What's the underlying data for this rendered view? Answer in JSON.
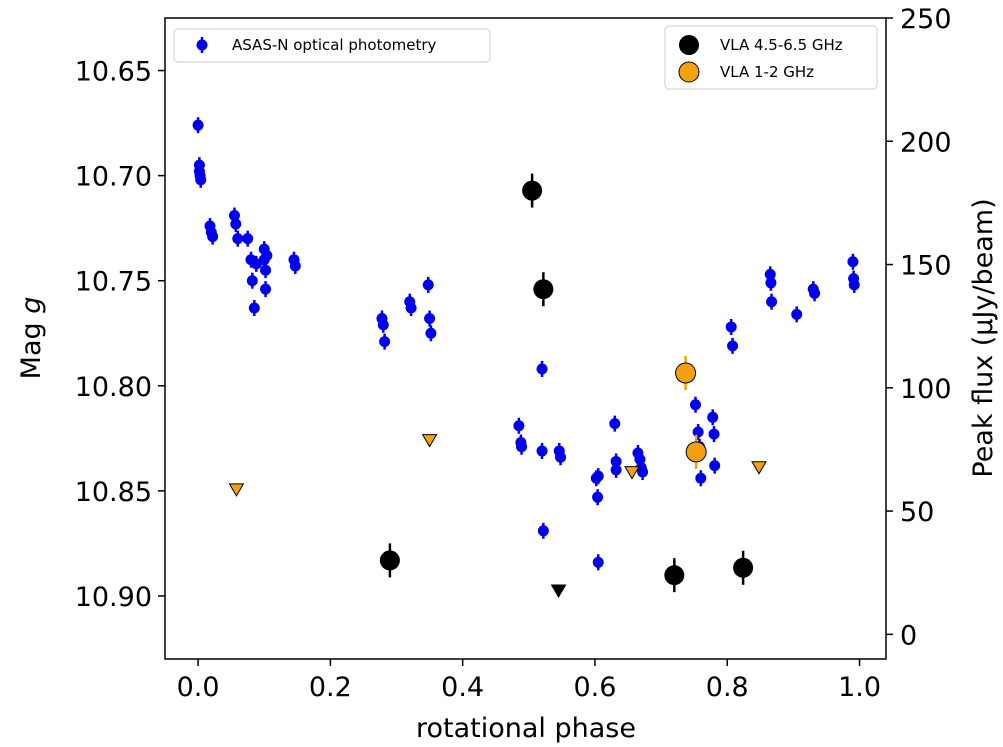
{
  "chart_data": {
    "type": "scatter",
    "xlabel": "rotational phase",
    "ylabel_left": "Mag g",
    "ylabel_right": "Peak flux (μJy/beam)",
    "xlim": [
      -0.05,
      1.04
    ],
    "ylim_left": [
      10.93,
      10.625
    ],
    "ylim_right": [
      -10,
      250
    ],
    "x_ticks": [
      0.0,
      0.2,
      0.4,
      0.6,
      0.8,
      1.0
    ],
    "x_tick_labels": [
      "0.0",
      "0.2",
      "0.4",
      "0.6",
      "0.8",
      "1.0"
    ],
    "y_left_ticks": [
      10.65,
      10.7,
      10.75,
      10.8,
      10.85,
      10.9
    ],
    "y_left_tick_labels": [
      "10.65",
      "10.70",
      "10.75",
      "10.80",
      "10.85",
      "10.90"
    ],
    "y_right_ticks": [
      0,
      50,
      100,
      150,
      200,
      250
    ],
    "y_right_tick_labels": [
      "0",
      "50",
      "100",
      "150",
      "200",
      "250"
    ],
    "legend_left": {
      "placement": "upper-left",
      "entries": [
        "ASAS-N optical photometry"
      ]
    },
    "legend_right": {
      "placement": "upper-right",
      "entries": [
        "VLA 4.5-6.5 GHz",
        "VLA 1-2 GHz"
      ]
    },
    "series": [
      {
        "name": "ASAS-N optical photometry",
        "axis": "left",
        "color": "#0000ee",
        "marker": "circle-errorbar",
        "x": [
          0.0,
          0.002,
          0.002,
          0.003,
          0.004,
          0.018,
          0.02,
          0.022,
          0.055,
          0.057,
          0.06,
          0.075,
          0.08,
          0.082,
          0.085,
          0.088,
          0.1,
          0.1,
          0.102,
          0.102,
          0.104,
          0.145,
          0.147,
          0.278,
          0.28,
          0.282,
          0.32,
          0.322,
          0.348,
          0.35,
          0.352,
          0.485,
          0.488,
          0.489,
          0.52,
          0.52,
          0.522,
          0.546,
          0.548,
          0.602,
          0.604,
          0.605,
          0.605,
          0.63,
          0.632,
          0.632,
          0.665,
          0.668,
          0.67,
          0.672,
          0.752,
          0.756,
          0.758,
          0.76,
          0.778,
          0.78,
          0.781,
          0.806,
          0.808,
          0.865,
          0.866,
          0.867,
          0.905,
          0.93,
          0.932,
          0.99,
          0.991,
          0.992
        ],
        "y": [
          10.676,
          10.695,
          10.698,
          10.7,
          10.702,
          10.724,
          10.727,
          10.729,
          10.719,
          10.723,
          10.73,
          10.73,
          10.74,
          10.75,
          10.763,
          10.742,
          10.735,
          10.74,
          10.745,
          10.754,
          10.738,
          10.74,
          10.743,
          10.768,
          10.771,
          10.779,
          10.76,
          10.763,
          10.752,
          10.768,
          10.775,
          10.819,
          10.827,
          10.829,
          10.792,
          10.831,
          10.869,
          10.831,
          10.834,
          10.844,
          10.853,
          10.884,
          10.843,
          10.818,
          10.836,
          10.84,
          10.832,
          10.835,
          10.839,
          10.841,
          10.809,
          10.822,
          10.829,
          10.844,
          10.815,
          10.823,
          10.838,
          10.772,
          10.781,
          10.747,
          10.751,
          10.76,
          10.766,
          10.754,
          10.756,
          10.741,
          10.749,
          10.752
        ]
      },
      {
        "name": "VLA 4.5-6.5 GHz",
        "axis": "right",
        "color": "#000000",
        "marker": "circle-errorbar",
        "x": [
          0.29,
          0.505,
          0.522,
          0.72,
          0.824
        ],
        "y": [
          30,
          180,
          140,
          24,
          27
        ]
      },
      {
        "name": "VLA 4.5-6.5 GHz upper limit",
        "axis": "right",
        "color": "#000000",
        "marker": "triangle-down",
        "x": [
          0.545
        ],
        "y": [
          18
        ]
      },
      {
        "name": "VLA 1-2 GHz",
        "axis": "right",
        "color": "#f5a010",
        "marker": "circle-errorbar",
        "x": [
          0.737,
          0.753
        ],
        "y": [
          106,
          74
        ]
      },
      {
        "name": "VLA 1-2 GHz upper limit",
        "axis": "right",
        "color": "#f5a010",
        "marker": "triangle-down",
        "x": [
          0.058,
          0.35,
          0.656,
          0.848
        ],
        "y": [
          59,
          79,
          66,
          68
        ]
      }
    ]
  }
}
